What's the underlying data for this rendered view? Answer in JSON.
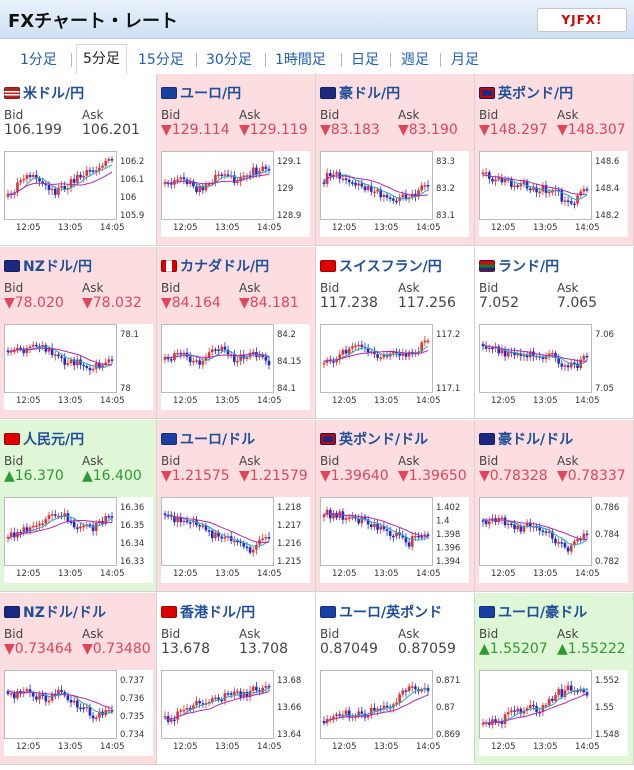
{
  "title": "FXチャート・レート",
  "logo": "YJFX!",
  "tabs": [
    "1分足",
    "5分足",
    "15分足",
    "30分足",
    "1時間足",
    "日足",
    "週足",
    "月足"
  ],
  "active_tab": "5分足",
  "labels": {
    "bid": "Bid",
    "ask": "Ask"
  },
  "time_labels": [
    "12:05",
    "13:05",
    "14:05"
  ],
  "colors": {
    "down_bg": "#fcdde0",
    "up_bg": "#dff6d7",
    "down_text": "#e0455a",
    "up_text": "#2f9a30"
  },
  "pairs": [
    {
      "name": "米ドル/円",
      "bid": "106.199",
      "ask": "106.201",
      "trend": "none",
      "flag": "us",
      "ticks": [
        "106.2",
        "106.1",
        "106",
        "105.9"
      ]
    },
    {
      "name": "ユーロ/円",
      "bid": "▼129.114",
      "ask": "▼129.119",
      "trend": "down",
      "flag": "eu",
      "ticks": [
        "129.1",
        "129",
        "128.9"
      ]
    },
    {
      "name": "豪ドル/円",
      "bid": "▼83.183",
      "ask": "▼83.190",
      "trend": "down",
      "flag": "au",
      "ticks": [
        "83.3",
        "83.2",
        "83.1"
      ]
    },
    {
      "name": "英ポンド/円",
      "bid": "▼148.297",
      "ask": "▼148.307",
      "trend": "down",
      "flag": "uk",
      "ticks": [
        "148.6",
        "148.4",
        "148.2"
      ]
    },
    {
      "name": "NZドル/円",
      "bid": "▼78.020",
      "ask": "▼78.032",
      "trend": "down",
      "flag": "nz",
      "ticks": [
        "78.1",
        "78"
      ]
    },
    {
      "name": "カナダドル/円",
      "bid": "▼84.164",
      "ask": "▼84.181",
      "trend": "down",
      "flag": "ca",
      "ticks": [
        "84.2",
        "84.15",
        "84.1"
      ]
    },
    {
      "name": "スイスフラン/円",
      "bid": "117.238",
      "ask": "117.256",
      "trend": "none",
      "flag": "ch",
      "ticks": [
        "117.2",
        "117.1"
      ]
    },
    {
      "name": "ランド/円",
      "bid": "7.052",
      "ask": "7.065",
      "trend": "none",
      "flag": "za",
      "ticks": [
        "7.06",
        "7.05"
      ]
    },
    {
      "name": "人民元/円",
      "bid": "▲16.370",
      "ask": "▲16.400",
      "trend": "up",
      "flag": "cn",
      "ticks": [
        "16.36",
        "16.35",
        "16.34",
        "16.33"
      ]
    },
    {
      "name": "ユーロ/ドル",
      "bid": "▼1.21575",
      "ask": "▼1.21579",
      "trend": "down",
      "flag": "eu",
      "ticks": [
        "1.218",
        "1.217",
        "1.216",
        "1.215"
      ]
    },
    {
      "name": "英ポンド/ドル",
      "bid": "▼1.39640",
      "ask": "▼1.39650",
      "trend": "down",
      "flag": "uk",
      "ticks": [
        "1.402",
        "1.4",
        "1.398",
        "1.396",
        "1.394"
      ]
    },
    {
      "name": "豪ドル/ドル",
      "bid": "▼0.78328",
      "ask": "▼0.78337",
      "trend": "down",
      "flag": "au",
      "ticks": [
        "0.786",
        "0.784",
        "0.782"
      ]
    },
    {
      "name": "NZドル/ドル",
      "bid": "▼0.73464",
      "ask": "▼0.73480",
      "trend": "down",
      "flag": "nz",
      "ticks": [
        "0.737",
        "0.736",
        "0.735",
        "0.734"
      ]
    },
    {
      "name": "香港ドル/円",
      "bid": "13.678",
      "ask": "13.708",
      "trend": "none",
      "flag": "hk",
      "ticks": [
        "13.68",
        "13.66",
        "13.64"
      ]
    },
    {
      "name": "ユーロ/英ポンド",
      "bid": "0.87049",
      "ask": "0.87059",
      "trend": "none",
      "flag": "eu",
      "ticks": [
        "0.871",
        "0.87",
        "0.869"
      ]
    },
    {
      "name": "ユーロ/豪ドル",
      "bid": "▲1.55207",
      "ask": "▲1.55222",
      "trend": "up",
      "flag": "eu",
      "ticks": [
        "1.552",
        "1.55",
        "1.548"
      ]
    }
  ]
}
